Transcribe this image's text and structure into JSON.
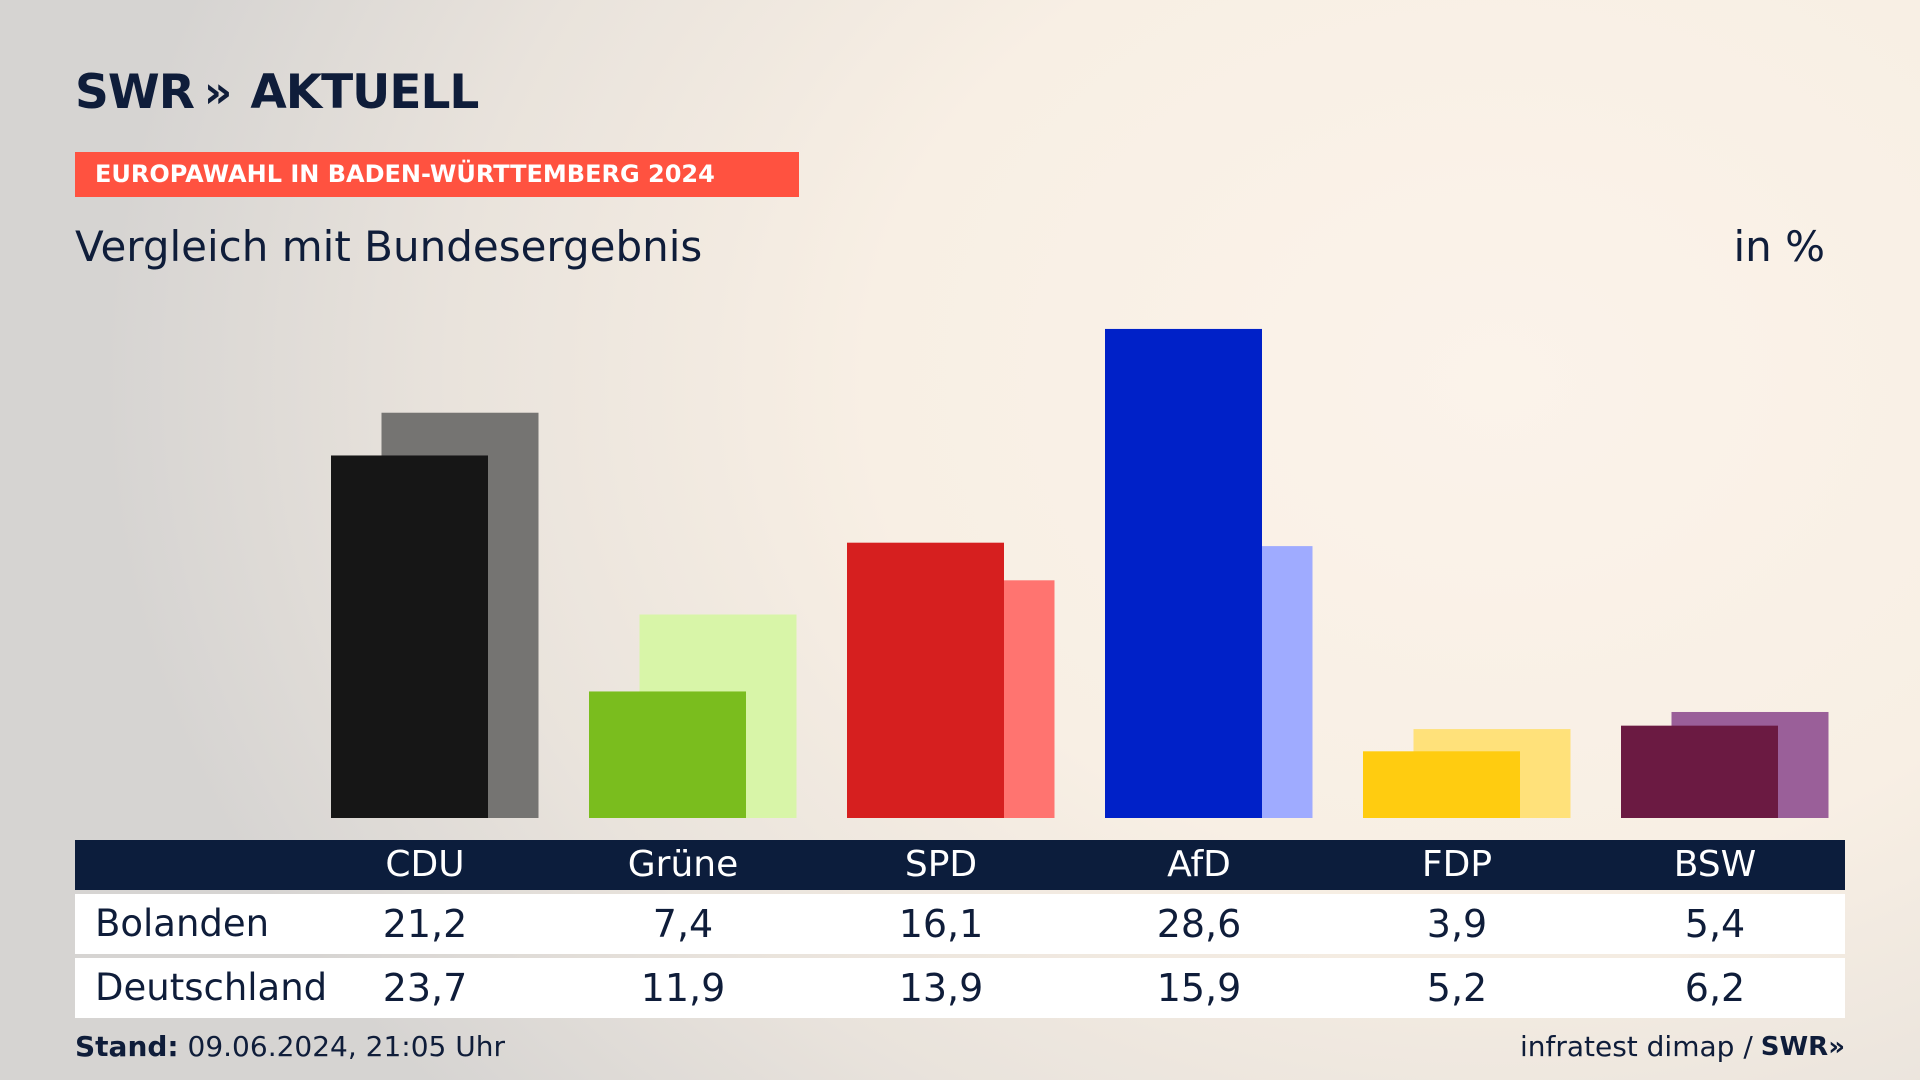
{
  "header": {
    "logo_text": "SWR",
    "logo_chevrons": "»",
    "logo_suffix": "AKTUELL",
    "kicker": "EUROPAWAHL IN BADEN-WÜRTTEMBERG 2024",
    "title": "Vergleich mit Bundesergebnis",
    "unit": "in %"
  },
  "chart_data": {
    "type": "bar",
    "categories": [
      "CDU",
      "Grüne",
      "SPD",
      "AfD",
      "FDP",
      "BSW"
    ],
    "series": [
      {
        "name": "Bolanden",
        "values": [
          21.2,
          7.4,
          16.1,
          28.6,
          3.9,
          5.4
        ],
        "colors": [
          "#161616",
          "#7abd1e",
          "#d61f1f",
          "#0021c8",
          "#ffcc10",
          "#6b1a42"
        ]
      },
      {
        "name": "Deutschland",
        "values": [
          23.7,
          11.9,
          13.9,
          15.9,
          5.2,
          6.2
        ],
        "colors": [
          "#757472",
          "#d8f5a8",
          "#ff7470",
          "#9fabff",
          "#ffe17a",
          "#9a5f99"
        ]
      }
    ],
    "ylim": [
      0,
      30
    ],
    "grid": false,
    "legend": "table-below"
  },
  "table": {
    "rows": [
      {
        "label": "Bolanden",
        "values": [
          "21,2",
          "7,4",
          "16,1",
          "28,6",
          "3,9",
          "5,4"
        ]
      },
      {
        "label": "Deutschland",
        "values": [
          "23,7",
          "11,9",
          "13,9",
          "15,9",
          "5,2",
          "6,2"
        ]
      }
    ]
  },
  "footer": {
    "stand_label": "Stand:",
    "stand_value": "09.06.2024, 21:05 Uhr",
    "source": "infratest dimap /",
    "source_logo": "SWR",
    "source_chevrons": "»"
  }
}
